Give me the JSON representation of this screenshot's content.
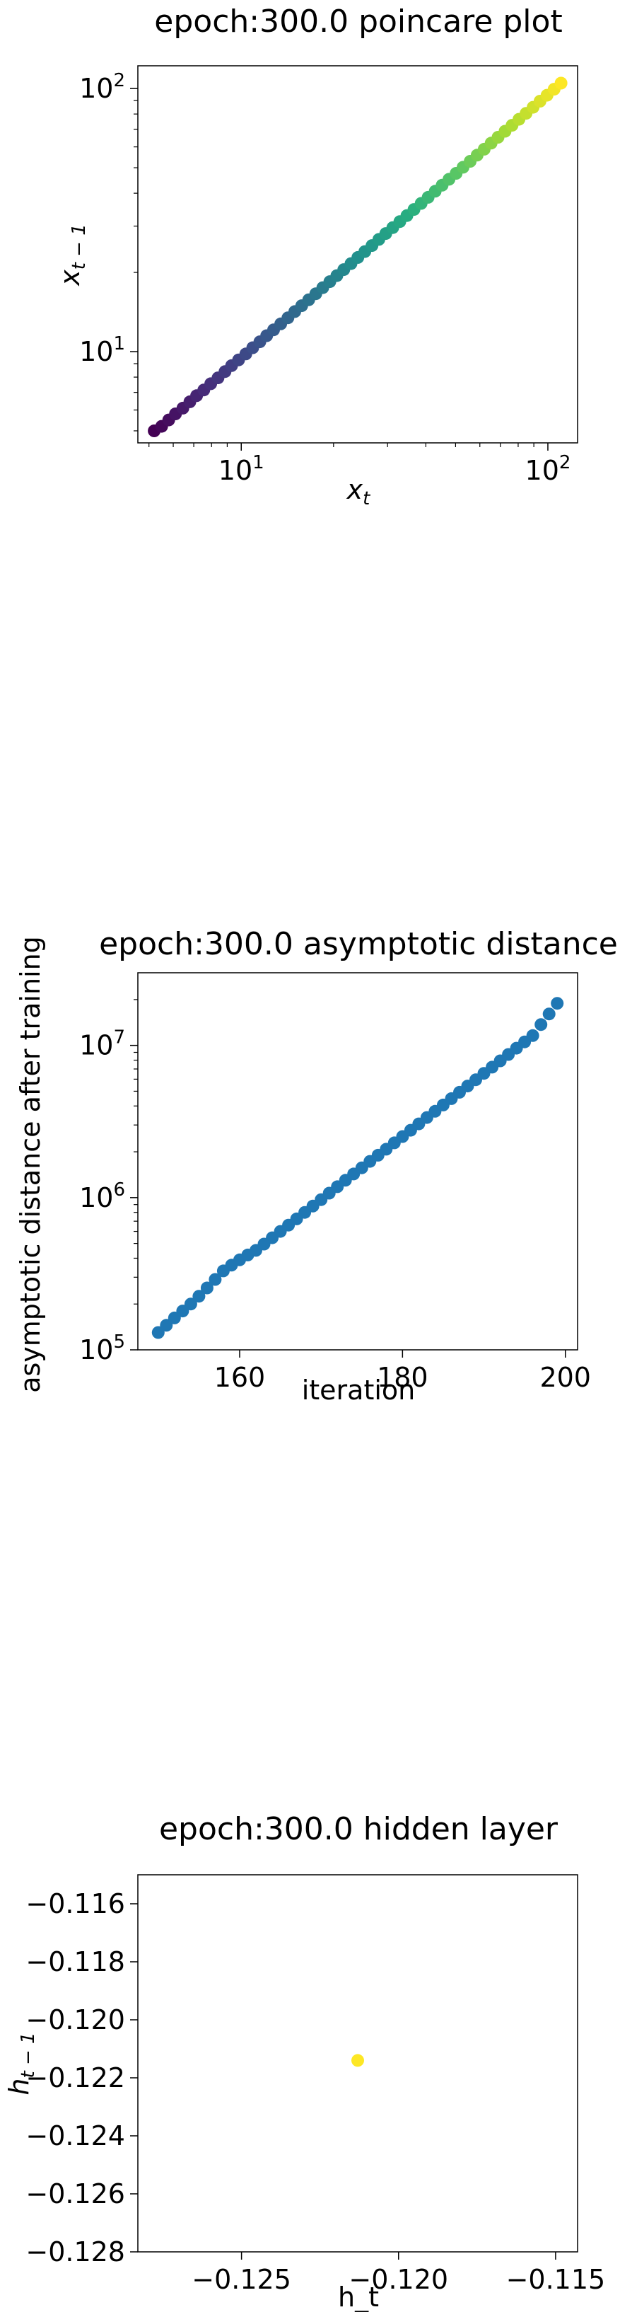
{
  "chart_data": [
    {
      "type": "scatter",
      "title": "epoch:300.0 poincare plot",
      "xlabel": "x_t",
      "ylabel": "x_{t-1}",
      "xscale": "log",
      "yscale": "log",
      "xlim": [
        4.6,
        125
      ],
      "ylim": [
        4.5,
        122
      ],
      "x_ticks": [
        {
          "value": 10,
          "label": "10",
          "exp": "1"
        },
        {
          "value": 100,
          "label": "10",
          "exp": "2"
        }
      ],
      "y_ticks": [
        {
          "value": 10,
          "label": "10",
          "exp": "1"
        },
        {
          "value": 100,
          "label": "10",
          "exp": "2"
        }
      ],
      "colormap": [
        "#440154",
        "#472c7a",
        "#3b518b",
        "#2c718e",
        "#21908d",
        "#27ad81",
        "#5cc863",
        "#aadc32",
        "#fde725"
      ],
      "grid": false,
      "x": [
        5.2,
        5.5,
        5.8,
        6.1,
        6.45,
        6.8,
        7.15,
        7.55,
        7.95,
        8.4,
        8.85,
        9.3,
        9.8,
        10.35,
        10.9,
        11.5,
        12.1,
        12.75,
        13.45,
        14.2,
        14.95,
        15.75,
        16.6,
        17.5,
        18.45,
        19.45,
        20.5,
        21.6,
        22.8,
        24.0,
        25.3,
        26.7,
        28.1,
        29.6,
        31.2,
        32.9,
        34.7,
        36.6,
        38.6,
        40.7,
        42.9,
        45.2,
        47.6,
        50.2,
        52.9,
        55.8,
        58.8,
        62.0,
        65.3,
        68.8,
        72.5,
        76.4,
        80.5,
        84.9,
        89.5,
        94.3,
        99.4,
        104.8,
        110.4
      ],
      "y": [
        5.0,
        5.2,
        5.5,
        5.8,
        6.1,
        6.45,
        6.8,
        7.15,
        7.55,
        7.95,
        8.4,
        8.85,
        9.3,
        9.8,
        10.35,
        10.9,
        11.5,
        12.1,
        12.75,
        13.45,
        14.2,
        14.95,
        15.75,
        16.6,
        17.5,
        18.45,
        19.45,
        20.5,
        21.6,
        22.8,
        24.0,
        25.3,
        26.7,
        28.1,
        29.6,
        31.2,
        32.9,
        34.7,
        36.6,
        38.6,
        40.7,
        42.9,
        45.2,
        47.6,
        50.2,
        52.9,
        55.8,
        58.8,
        62.0,
        65.3,
        68.8,
        72.5,
        76.4,
        80.5,
        84.9,
        89.5,
        94.3,
        99.4,
        104.8
      ]
    },
    {
      "type": "scatter",
      "title": "epoch:300.0 asymptotic distance",
      "xlabel": "iteration",
      "ylabel": "asymptotic distance after training",
      "xscale": "linear",
      "yscale": "log",
      "xlim": [
        147.5,
        201.5
      ],
      "ylim": [
        100000,
        30000000
      ],
      "x_ticks": [
        {
          "value": 160,
          "label": "160"
        },
        {
          "value": 180,
          "label": "180"
        },
        {
          "value": 200,
          "label": "200"
        }
      ],
      "y_ticks": [
        {
          "value": 100000,
          "label": "10",
          "exp": "5"
        },
        {
          "value": 1000000,
          "label": "10",
          "exp": "6"
        },
        {
          "value": 10000000,
          "label": "10",
          "exp": "7"
        }
      ],
      "color": "#1f77b4",
      "grid": false,
      "x": [
        150,
        151,
        152,
        153,
        154,
        155,
        156,
        157,
        158,
        159,
        160,
        161,
        162,
        163,
        164,
        165,
        166,
        167,
        168,
        169,
        170,
        171,
        172,
        173,
        174,
        175,
        176,
        177,
        178,
        179,
        180,
        181,
        182,
        183,
        184,
        185,
        186,
        187,
        188,
        189,
        190,
        191,
        192,
        193,
        194,
        195,
        196,
        197,
        198,
        199
      ],
      "y": [
        130000,
        145000,
        162000,
        180000,
        200000,
        225000,
        255000,
        290000,
        330000,
        360000,
        390000,
        420000,
        450000,
        495000,
        545000,
        600000,
        660000,
        725000,
        800000,
        880000,
        970000,
        1070000,
        1180000,
        1300000,
        1430000,
        1570000,
        1730000,
        1900000,
        2080000,
        2290000,
        2520000,
        2770000,
        3050000,
        3360000,
        3690000,
        4060000,
        4470000,
        4920000,
        5410000,
        5950000,
        6550000,
        7200000,
        7920000,
        8720000,
        9590000,
        10550000,
        11600000,
        13700000,
        16100000,
        18900000
      ]
    },
    {
      "type": "scatter",
      "title": "epoch:300.0 hidden layer",
      "xlabel": "h_t",
      "ylabel": "h_{t-1}",
      "xscale": "linear",
      "yscale": "linear",
      "xlim": [
        -0.1283,
        -0.1143
      ],
      "ylim": [
        -0.128,
        -0.115
      ],
      "x_ticks": [
        {
          "value": -0.125,
          "label": "−0.125"
        },
        {
          "value": -0.12,
          "label": "−0.120"
        },
        {
          "value": -0.115,
          "label": "−0.115"
        }
      ],
      "y_ticks": [
        {
          "value": -0.128,
          "label": "−0.128"
        },
        {
          "value": -0.126,
          "label": "−0.126"
        },
        {
          "value": -0.124,
          "label": "−0.124"
        },
        {
          "value": -0.122,
          "label": "−0.122"
        },
        {
          "value": -0.12,
          "label": "−0.120"
        },
        {
          "value": -0.118,
          "label": "−0.118"
        },
        {
          "value": -0.116,
          "label": "−0.116"
        }
      ],
      "color": "#fde725",
      "grid": false,
      "x": [
        -0.1213
      ],
      "y": [
        -0.1214
      ]
    }
  ]
}
